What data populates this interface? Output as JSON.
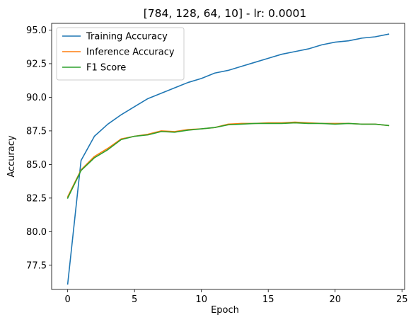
{
  "chart_data": {
    "type": "line",
    "title": "[784, 128, 64, 10] - lr: 0.0001",
    "xlabel": "Epoch",
    "ylabel": "Accuracy",
    "xlim": [
      -1.2,
      25.2
    ],
    "ylim": [
      75.7,
      95.5
    ],
    "xticks": [
      0,
      5,
      10,
      15,
      20,
      25
    ],
    "yticks": [
      77.5,
      80.0,
      82.5,
      85.0,
      87.5,
      90.0,
      92.5,
      95.0
    ],
    "xtick_labels": [
      "0",
      "5",
      "10",
      "15",
      "20",
      "25"
    ],
    "ytick_labels": [
      "77.5",
      "80.0",
      "82.5",
      "85.0",
      "87.5",
      "90.0",
      "92.5",
      "95.0"
    ],
    "grid": false,
    "legend_position": "top-left",
    "x": [
      0,
      1,
      2,
      3,
      4,
      5,
      6,
      7,
      8,
      9,
      10,
      11,
      12,
      13,
      14,
      15,
      16,
      17,
      18,
      19,
      20,
      21,
      22,
      23,
      24
    ],
    "series": [
      {
        "name": "Training Accuracy",
        "color": "#1f77b4",
        "values": [
          76.1,
          85.3,
          87.1,
          88.0,
          88.7,
          89.3,
          89.9,
          90.3,
          90.7,
          91.1,
          91.4,
          91.8,
          92.0,
          92.3,
          92.6,
          92.9,
          93.2,
          93.4,
          93.6,
          93.9,
          94.1,
          94.2,
          94.4,
          94.5,
          94.7
        ]
      },
      {
        "name": "Inference Accuracy",
        "color": "#ff7f0e",
        "values": [
          82.6,
          84.6,
          85.6,
          86.2,
          86.9,
          87.1,
          87.25,
          87.5,
          87.45,
          87.6,
          87.65,
          87.75,
          88.0,
          88.05,
          88.05,
          88.1,
          88.1,
          88.15,
          88.1,
          88.05,
          88.05,
          88.05,
          88.0,
          88.0,
          87.9
        ]
      },
      {
        "name": "F1 Score",
        "color": "#2ca02c",
        "values": [
          82.5,
          84.55,
          85.5,
          86.1,
          86.85,
          87.1,
          87.2,
          87.45,
          87.4,
          87.55,
          87.65,
          87.75,
          87.95,
          88.0,
          88.05,
          88.05,
          88.05,
          88.1,
          88.05,
          88.05,
          88.0,
          88.05,
          88.0,
          88.0,
          87.9
        ]
      }
    ]
  }
}
